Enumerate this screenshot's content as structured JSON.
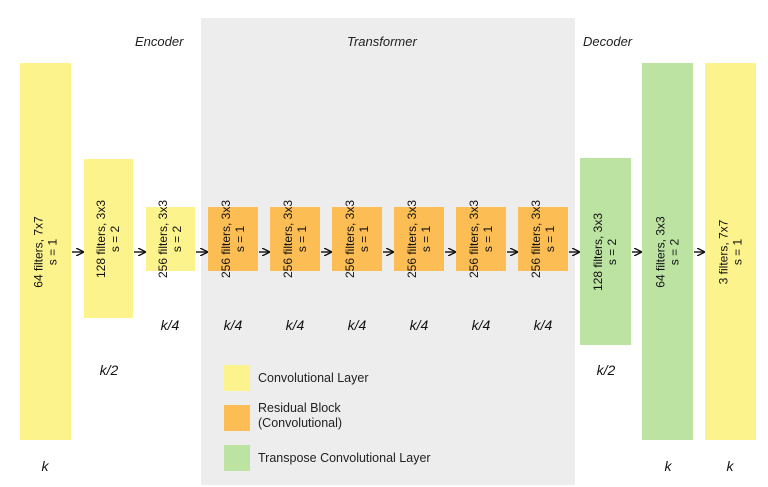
{
  "sections": {
    "encoder": "Encoder",
    "transformer": "Transformer",
    "decoder": "Decoder"
  },
  "colors": {
    "conv": "#fdf38d",
    "residual": "#fbbd54",
    "transpose": "#bde3a3",
    "transformer_bg": "#ededed"
  },
  "layers": [
    {
      "filters": "64 filters, 7x7",
      "stride": "s = 1",
      "type": "conv",
      "dim": "k"
    },
    {
      "filters": "128 filters, 3x3",
      "stride": "s = 2",
      "type": "conv",
      "dim": "k/2"
    },
    {
      "filters": "256 filters, 3x3",
      "stride": "s = 2",
      "type": "conv",
      "dim": "k/4"
    },
    {
      "filters": "256 filters, 3x3",
      "stride": "s = 1",
      "type": "residual",
      "dim": "k/4"
    },
    {
      "filters": "256 filters, 3x3",
      "stride": "s = 1",
      "type": "residual",
      "dim": "k/4"
    },
    {
      "filters": "256 filters, 3x3",
      "stride": "s = 1",
      "type": "residual",
      "dim": "k/4"
    },
    {
      "filters": "256 filters, 3x3",
      "stride": "s = 1",
      "type": "residual",
      "dim": "k/4"
    },
    {
      "filters": "256 filters, 3x3",
      "stride": "s = 1",
      "type": "residual",
      "dim": "k/4"
    },
    {
      "filters": "256 filters, 3x3",
      "stride": "s = 1",
      "type": "residual",
      "dim": "k/4"
    },
    {
      "filters": "128 filters, 3x3",
      "stride": "s = 2",
      "type": "transpose",
      "dim": "k/2"
    },
    {
      "filters": "64 filters, 3x3",
      "stride": "s = 2",
      "type": "transpose",
      "dim": "k"
    },
    {
      "filters": "3 filters, 7x7",
      "stride": "s = 1",
      "type": "conv",
      "dim": "k"
    }
  ],
  "legend": [
    {
      "label": "Convolutional Layer",
      "type": "conv"
    },
    {
      "label": "Residual Block (Convolutional)",
      "type": "residual"
    },
    {
      "label": "Transpose Convolutional Layer",
      "type": "transpose"
    }
  ]
}
